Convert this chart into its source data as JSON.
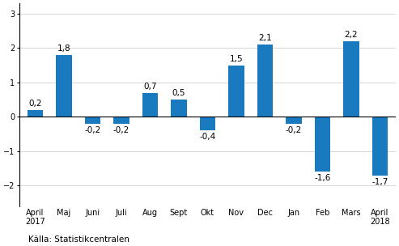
{
  "categories": [
    "April\n2017",
    "Maj",
    "Juni",
    "Juli",
    "Aug",
    "Sept",
    "Okt",
    "Nov",
    "Dec",
    "Jan",
    "Feb",
    "Mars",
    "April\n2018"
  ],
  "values": [
    0.2,
    1.8,
    -0.2,
    -0.2,
    0.7,
    0.5,
    -0.4,
    1.5,
    2.1,
    -0.2,
    -1.6,
    2.2,
    -1.7
  ],
  "bar_color": "#1a7abf",
  "ylim": [
    -2.6,
    3.3
  ],
  "yticks": [
    -2,
    -1,
    0,
    1,
    2,
    3
  ],
  "label_fontsize": 7.5,
  "tick_fontsize": 7.0,
  "source_text": "Källa: Statistikcentralen",
  "source_fontsize": 7.5,
  "background_color": "#ffffff",
  "grid_color": "#d0d0d0",
  "bar_width": 0.55
}
